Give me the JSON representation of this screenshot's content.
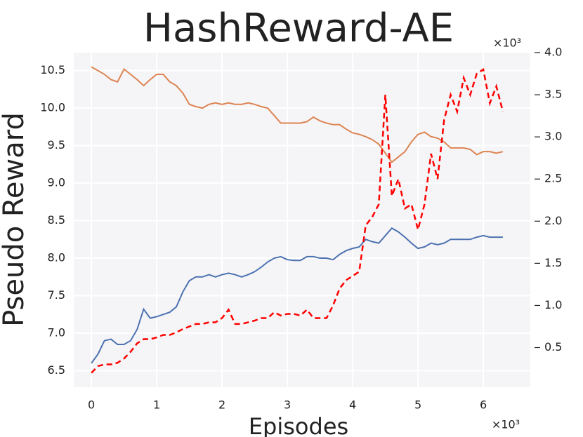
{
  "chart_data": {
    "type": "line",
    "title": "HashReward-AE",
    "xlabel": "Episodes",
    "ylabel": "Pseudo Reward",
    "x_offset_label": "×10³",
    "y2_offset_label": "×10³",
    "x": [
      0,
      0.1,
      0.2,
      0.3,
      0.4,
      0.5,
      0.6,
      0.7,
      0.8,
      0.9,
      1.0,
      1.1,
      1.2,
      1.3,
      1.4,
      1.5,
      1.6,
      1.7,
      1.8,
      1.9,
      2.0,
      2.1,
      2.2,
      2.3,
      2.4,
      2.5,
      2.6,
      2.7,
      2.8,
      2.9,
      3.0,
      3.1,
      3.2,
      3.3,
      3.4,
      3.5,
      3.6,
      3.7,
      3.8,
      3.9,
      4.0,
      4.1,
      4.2,
      4.3,
      4.4,
      4.5,
      4.6,
      4.7,
      4.8,
      4.9,
      5.0,
      5.1,
      5.2,
      5.3,
      5.4,
      5.5,
      5.6,
      5.7,
      5.8,
      5.9,
      6.0,
      6.1,
      6.2,
      6.3
    ],
    "series": [
      {
        "color": "#dd8452",
        "dashed": false,
        "values": [
          10.55,
          10.5,
          10.45,
          10.38,
          10.35,
          10.52,
          10.45,
          10.38,
          10.3,
          10.38,
          10.45,
          10.45,
          10.35,
          10.3,
          10.2,
          10.05,
          10.02,
          10.0,
          10.05,
          10.07,
          10.05,
          10.07,
          10.05,
          10.05,
          10.07,
          10.05,
          10.02,
          10.0,
          9.9,
          9.8,
          9.8,
          9.8,
          9.8,
          9.82,
          9.88,
          9.83,
          9.8,
          9.78,
          9.78,
          9.72,
          9.67,
          9.65,
          9.62,
          9.58,
          9.52,
          9.4,
          9.28,
          9.35,
          9.42,
          9.55,
          9.65,
          9.68,
          9.62,
          9.6,
          9.55,
          9.47,
          9.47,
          9.47,
          9.45,
          9.38,
          9.42,
          9.42,
          9.4,
          9.42
        ]
      },
      {
        "color": "#4c72b0",
        "dashed": false,
        "values": [
          6.6,
          6.72,
          6.9,
          6.92,
          6.85,
          6.85,
          6.9,
          7.05,
          7.32,
          7.2,
          7.22,
          7.25,
          7.28,
          7.35,
          7.55,
          7.7,
          7.75,
          7.75,
          7.78,
          7.75,
          7.78,
          7.8,
          7.78,
          7.75,
          7.78,
          7.82,
          7.88,
          7.95,
          8.0,
          8.02,
          7.98,
          7.97,
          7.97,
          8.02,
          8.02,
          8.0,
          8.0,
          7.98,
          8.05,
          8.1,
          8.13,
          8.15,
          8.25,
          8.22,
          8.2,
          8.3,
          8.4,
          8.35,
          8.28,
          8.2,
          8.13,
          8.15,
          8.2,
          8.18,
          8.2,
          8.25,
          8.25,
          8.25,
          8.25,
          8.28,
          8.3,
          8.28,
          8.28,
          8.28
        ]
      },
      {
        "color": "#ff0000",
        "dashed": true,
        "axis": "y2",
        "values": [
          0.2,
          0.28,
          0.3,
          0.3,
          0.32,
          0.37,
          0.45,
          0.55,
          0.6,
          0.6,
          0.62,
          0.65,
          0.65,
          0.68,
          0.72,
          0.75,
          0.78,
          0.78,
          0.8,
          0.8,
          0.85,
          0.95,
          0.78,
          0.78,
          0.8,
          0.82,
          0.85,
          0.85,
          0.92,
          0.88,
          0.9,
          0.9,
          0.88,
          0.95,
          0.85,
          0.85,
          0.85,
          1.0,
          1.2,
          1.3,
          1.35,
          1.4,
          1.95,
          2.05,
          2.2,
          3.5,
          2.3,
          2.5,
          2.15,
          2.2,
          1.9,
          2.2,
          2.8,
          2.5,
          3.2,
          3.5,
          3.3,
          3.7,
          3.5,
          3.75,
          3.8,
          3.4,
          3.6,
          3.3
        ]
      }
    ],
    "xlim": [
      -0.27,
      6.72
    ],
    "xticks": [
      0,
      1,
      2,
      3,
      4,
      5,
      6
    ],
    "ylim": [
      6.28,
      10.74
    ],
    "yticks": [
      6.5,
      {
        "value": 7,
        "label": "7.0"
      },
      7.5,
      {
        "value": 8,
        "label": "8.0"
      },
      8.5,
      {
        "value": 9,
        "label": "9.0"
      },
      9.5,
      {
        "value": 10,
        "label": "10.0"
      },
      10.5
    ],
    "y2lim": [
      0.03,
      4.0
    ],
    "y2ticks": [
      0.5,
      {
        "value": 1,
        "label": "1.0"
      },
      1.5,
      {
        "value": 2,
        "label": "2.0"
      },
      2.5,
      {
        "value": 3,
        "label": "3.0"
      },
      3.5,
      {
        "value": 4,
        "label": "4.0"
      }
    ],
    "grid": true
  }
}
